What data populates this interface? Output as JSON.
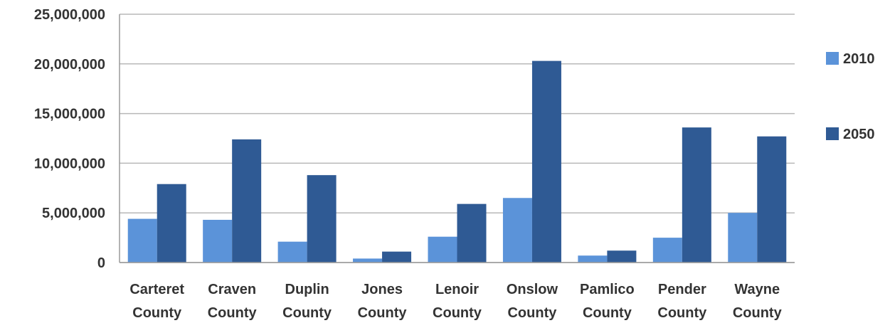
{
  "chart_data": {
    "type": "bar",
    "categories": [
      [
        "Carteret",
        "County"
      ],
      [
        "Craven",
        "County"
      ],
      [
        "Duplin",
        "County"
      ],
      [
        "Jones",
        "County"
      ],
      [
        "Lenoir",
        "County"
      ],
      [
        "Onslow",
        "County"
      ],
      [
        "Pamlico",
        "County"
      ],
      [
        "Pender",
        "County"
      ],
      [
        "Wayne",
        "County"
      ]
    ],
    "series": [
      {
        "name": "2010",
        "color": "#5b93d9",
        "values": [
          4400000,
          4300000,
          2100000,
          400000,
          2600000,
          6500000,
          700000,
          2500000,
          5000000
        ]
      },
      {
        "name": "2050",
        "color": "#2f5a94",
        "values": [
          7900000,
          12400000,
          8800000,
          1100000,
          5900000,
          20300000,
          1200000,
          13600000,
          12700000
        ]
      }
    ],
    "y_ticks": [
      "0",
      "5,000,000",
      "10,000,000",
      "15,000,000",
      "20,000,000",
      "25,000,000"
    ],
    "ylim": [
      0,
      25000000
    ],
    "grid": true,
    "legend": "right"
  }
}
